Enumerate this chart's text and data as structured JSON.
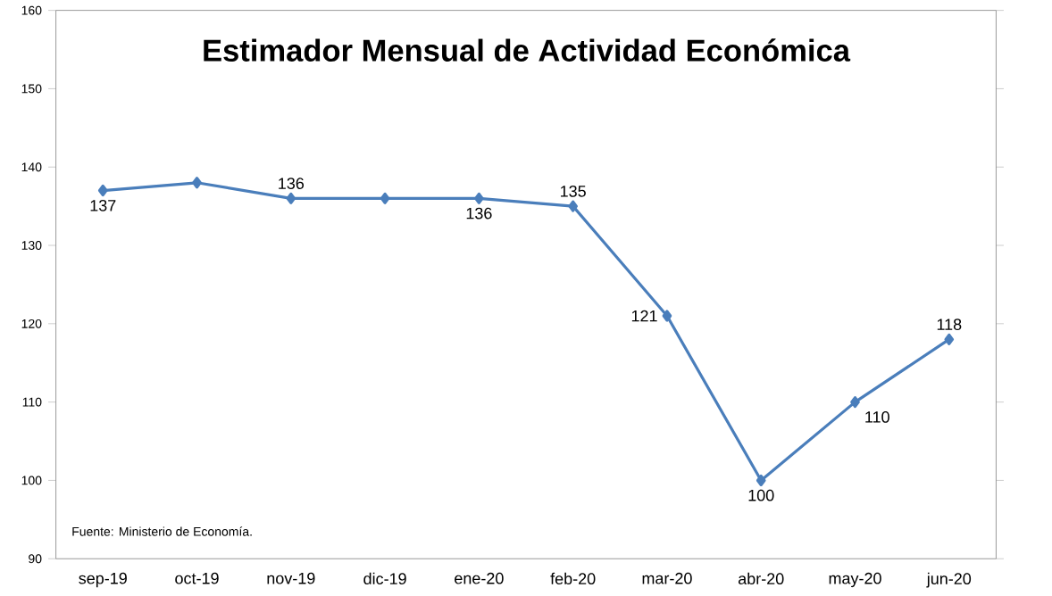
{
  "chart_data": {
    "type": "line",
    "title": "Estimador Mensual de Actividad Económica",
    "categories": [
      "sep-19",
      "oct-19",
      "nov-19",
      "dic-19",
      "ene-20",
      "feb-20",
      "mar-20",
      "abr-20",
      "may-20",
      "jun-20"
    ],
    "values": [
      137,
      138,
      136,
      136,
      136,
      135,
      121,
      100,
      110,
      118
    ],
    "value_labels": [
      "137",
      null,
      "136",
      null,
      "136",
      "135",
      "121",
      "100",
      "110",
      "118"
    ],
    "color": "#4a7ebb",
    "marker": "diamond",
    "line_style": "solid",
    "grid": false,
    "ylim": [
      90,
      160
    ],
    "yticks": [
      90,
      100,
      110,
      120,
      130,
      140,
      150,
      160
    ],
    "annotations": [
      "Fuente: Ministerio de Economía."
    ]
  }
}
